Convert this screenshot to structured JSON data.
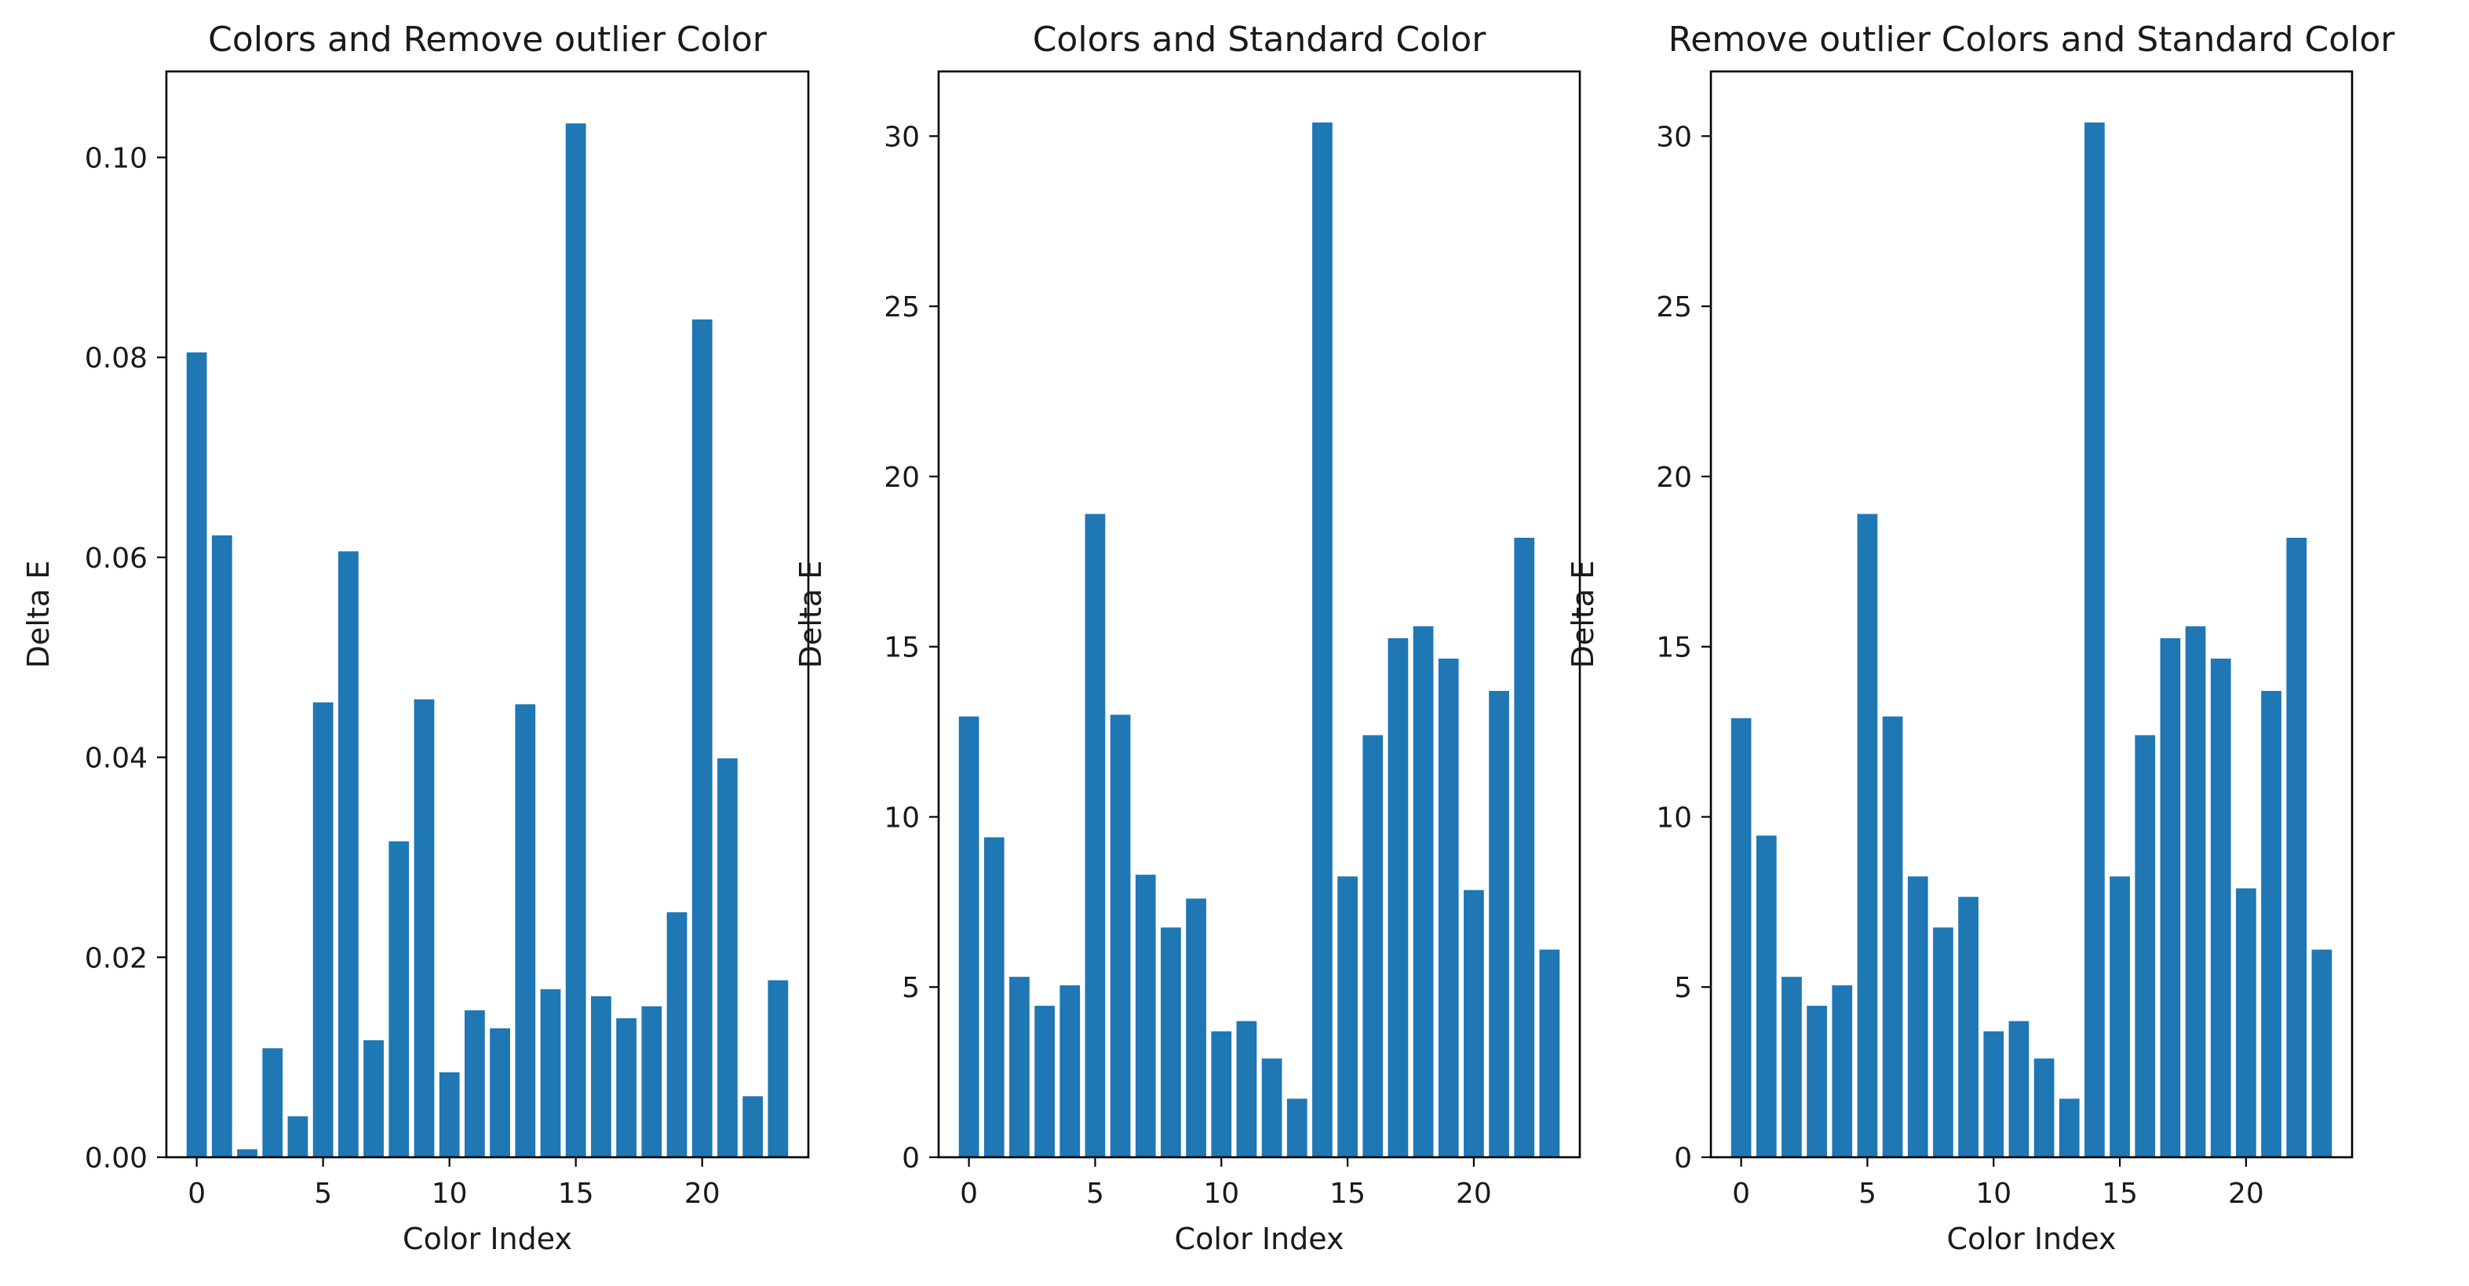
{
  "chart_data": [
    {
      "type": "bar",
      "title": "Colors and Remove outlier Color",
      "xlabel": "Color Index",
      "ylabel": "Delta E",
      "x": [
        0,
        1,
        2,
        3,
        4,
        5,
        6,
        7,
        8,
        9,
        10,
        11,
        12,
        13,
        14,
        15,
        16,
        17,
        18,
        19,
        20,
        21,
        22,
        23
      ],
      "values": [
        0.0805,
        0.0622,
        0.0008,
        0.0109,
        0.0041,
        0.0455,
        0.0606,
        0.0117,
        0.0316,
        0.0458,
        0.0085,
        0.0147,
        0.0129,
        0.0453,
        0.0168,
        0.1034,
        0.0161,
        0.0139,
        0.0151,
        0.0245,
        0.0838,
        0.0399,
        0.0061,
        0.0177
      ],
      "xlim": [
        -1.2,
        24.2
      ],
      "ylim": [
        0,
        0.1086
      ],
      "xticks": [
        0,
        5,
        10,
        15,
        20
      ],
      "xtick_labels": [
        "0",
        "5",
        "10",
        "15",
        "20"
      ],
      "yticks": [
        0,
        0.02,
        0.04,
        0.06,
        0.08,
        0.1
      ],
      "ytick_labels": [
        "0.00",
        "0.02",
        "0.04",
        "0.06",
        "0.08",
        "0.10"
      ],
      "bar_color": "#1f77b4",
      "grid": false
    },
    {
      "type": "bar",
      "title": "Colors and Standard Color",
      "xlabel": "Color Index",
      "ylabel": "Delta E",
      "x": [
        0,
        1,
        2,
        3,
        4,
        5,
        6,
        7,
        8,
        9,
        10,
        11,
        12,
        13,
        14,
        15,
        16,
        17,
        18,
        19,
        20,
        21,
        22,
        23
      ],
      "values": [
        12.95,
        9.4,
        5.3,
        4.45,
        5.05,
        18.9,
        13.0,
        8.3,
        6.75,
        7.6,
        3.7,
        4.0,
        2.9,
        1.72,
        30.4,
        8.25,
        12.4,
        15.25,
        15.6,
        14.65,
        7.85,
        13.7,
        18.2,
        6.1
      ],
      "xlim": [
        -1.2,
        24.2
      ],
      "ylim": [
        0,
        31.9
      ],
      "xticks": [
        0,
        5,
        10,
        15,
        20
      ],
      "xtick_labels": [
        "0",
        "5",
        "10",
        "15",
        "20"
      ],
      "yticks": [
        0,
        5,
        10,
        15,
        20,
        25,
        30
      ],
      "ytick_labels": [
        "0",
        "5",
        "10",
        "15",
        "20",
        "25",
        "30"
      ],
      "bar_color": "#1f77b4",
      "grid": false
    },
    {
      "type": "bar",
      "title": "Remove outlier Colors and Standard Color",
      "xlabel": "Color Index",
      "ylabel": "Delta E",
      "x": [
        0,
        1,
        2,
        3,
        4,
        5,
        6,
        7,
        8,
        9,
        10,
        11,
        12,
        13,
        14,
        15,
        16,
        17,
        18,
        19,
        20,
        21,
        22,
        23
      ],
      "values": [
        12.9,
        9.45,
        5.3,
        4.45,
        5.05,
        18.9,
        12.95,
        8.25,
        6.75,
        7.65,
        3.7,
        4.0,
        2.9,
        1.72,
        30.4,
        8.25,
        12.4,
        15.25,
        15.6,
        14.65,
        7.9,
        13.7,
        18.2,
        6.1
      ],
      "xlim": [
        -1.2,
        24.2
      ],
      "ylim": [
        0,
        31.9
      ],
      "xticks": [
        0,
        5,
        10,
        15,
        20
      ],
      "xtick_labels": [
        "0",
        "5",
        "10",
        "15",
        "20"
      ],
      "yticks": [
        0,
        5,
        10,
        15,
        20,
        25,
        30
      ],
      "ytick_labels": [
        "0",
        "5",
        "10",
        "15",
        "20",
        "25",
        "30"
      ],
      "bar_color": "#1f77b4",
      "grid": false
    }
  ]
}
